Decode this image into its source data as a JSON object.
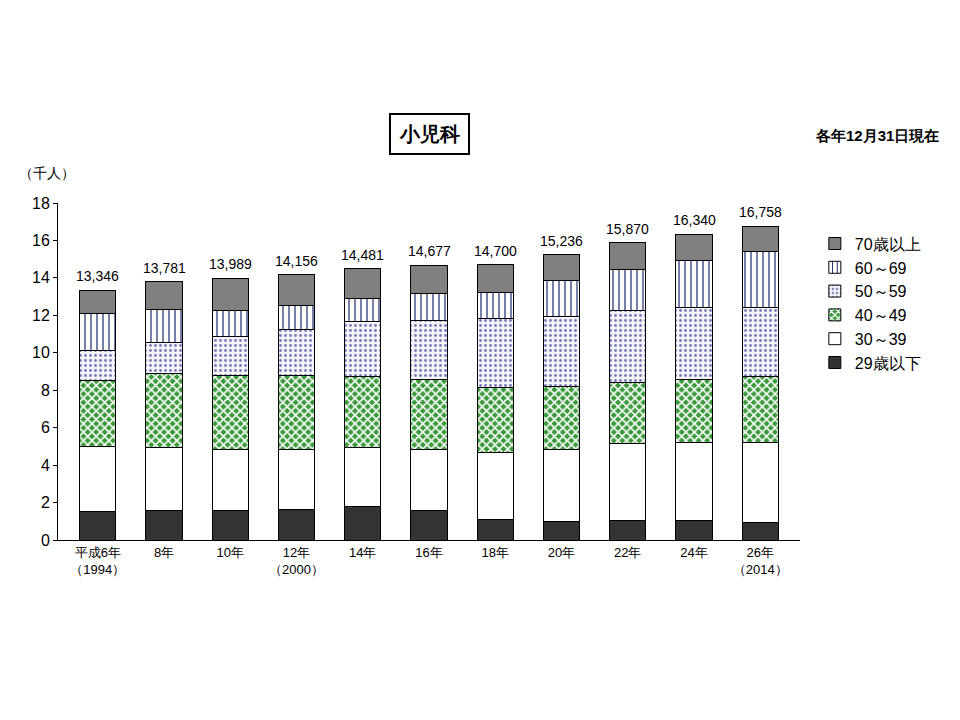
{
  "chart_data": {
    "type": "bar",
    "title": "小児科",
    "subtitle": "各年12月31日現在",
    "y_label": "（千人）",
    "stacked": true,
    "grid": false,
    "legend": "right",
    "categories": [
      "平成6年\n（1994）",
      "8年",
      "10年",
      "12年\n（2000）",
      "14年",
      "16年",
      "18年",
      "20年",
      "22年",
      "24年",
      "26年\n（2014）"
    ],
    "series": [
      {
        "name": "29歳以下",
        "color": "#333333",
        "values": [
          1.5,
          1.6,
          1.6,
          1.65,
          1.8,
          1.55,
          1.1,
          1.0,
          1.05,
          1.05,
          0.95
        ]
      },
      {
        "name": "30～39",
        "color": "#ffffff",
        "values": [
          3.5,
          3.35,
          3.25,
          3.2,
          3.15,
          3.3,
          3.55,
          3.85,
          4.1,
          4.15,
          4.25
        ]
      },
      {
        "name": "40～49",
        "color": "#3a9a3a",
        "values": [
          3.5,
          3.95,
          3.95,
          3.95,
          3.8,
          3.7,
          3.5,
          3.35,
          3.25,
          3.35,
          3.55
        ]
      },
      {
        "name": "50～59",
        "color": "#f4f4fb",
        "values": [
          1.6,
          1.65,
          2.05,
          2.45,
          2.9,
          3.2,
          3.7,
          3.75,
          3.85,
          3.85,
          3.65
        ]
      },
      {
        "name": "60～69",
        "color": "#ffffff",
        "values": [
          2.0,
          1.75,
          1.4,
          1.3,
          1.25,
          1.4,
          1.35,
          1.9,
          2.2,
          2.55,
          3.0
        ]
      },
      {
        "name": "70歳以上",
        "color": "#808080",
        "values": [
          1.246,
          1.481,
          1.739,
          1.606,
          1.581,
          1.527,
          1.5,
          1.386,
          1.42,
          1.39,
          1.358
        ]
      }
    ],
    "totals": [
      13.346,
      13.781,
      13.989,
      14.156,
      14.481,
      14.677,
      14.7,
      15.236,
      15.87,
      16.34,
      16.758
    ],
    "total_labels": [
      "13,346",
      "13,781",
      "13,989",
      "14,156",
      "14,481",
      "14,677",
      "14,700",
      "15,236",
      "15,870",
      "16,340",
      "16,758"
    ],
    "ylim": [
      0,
      18
    ],
    "yticks": [
      0,
      2,
      4,
      6,
      8,
      10,
      12,
      14,
      16,
      18
    ]
  }
}
